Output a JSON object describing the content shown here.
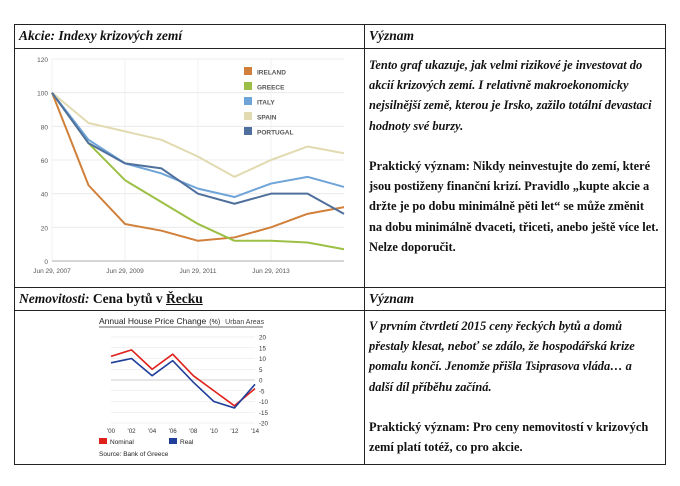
{
  "table": {
    "row1": {
      "left_header_italic": "Akcie: Indexy krizových zemí",
      "right_header": "Význam",
      "intro_text": "Tento graf ukazuje, jak velmi rizikové je investovat do akcií krizových zemí. I relativně makroekonomicky nejsilnější země, kterou je Irsko, zažilo totální devastaci hodnoty své burzy.",
      "practical_text": "Praktický význam: Nikdy neinvestujte do zemí, které jsou postiženy finanční krizí. Pravidlo „kupte akcie a držte je po dobu minimálně pěti let“ se může změnit na dobu minimálně dvaceti, třiceti, anebo ještě více let. Nelze doporučit."
    },
    "row2": {
      "left_header_italic": "Nemovitosti:",
      "left_header_regular": " Cena bytů v ",
      "left_header_underlined": "Řecku",
      "right_header": "Význam",
      "intro_text": "V prvním čtvrtletí 2015 ceny řeckých bytů a domů přestaly klesat, neboť se zdálo, že hospodářská krize pomalu končí. Jenomže přišla Tsiprasova vláda… a další díl příběhu začíná.",
      "practical_text": "Praktický význam: Pro ceny nemovitostí v krizových zemí platí totéž, co pro akcie."
    }
  },
  "chart_data": [
    {
      "type": "line",
      "title": "",
      "x": [
        "Jun 29, 2007",
        "Jun 29, 2008",
        "Jun 29, 2009",
        "Jun 29, 2010",
        "Jun 29, 2011",
        "Jun 29, 2012",
        "Jun 29, 2013",
        "Jun 29, 2014",
        "Jun 29, 2015"
      ],
      "x_tick_labels": [
        "Jun 29, 2007",
        "Jun 29, 2009",
        "Jun 29, 2011",
        "Jun 29, 2013"
      ],
      "ylim": [
        0,
        120
      ],
      "y_ticks": [
        0,
        20,
        40,
        60,
        80,
        100,
        120
      ],
      "series": [
        {
          "name": "IRELAND",
          "color": "#d0803a",
          "values": [
            100,
            45,
            22,
            18,
            12,
            14,
            20,
            28,
            32
          ]
        },
        {
          "name": "GREECE",
          "color": "#9cbf45",
          "values": [
            100,
            70,
            48,
            35,
            22,
            12,
            12,
            11,
            7
          ]
        },
        {
          "name": "ITALY",
          "color": "#6fa4d8",
          "values": [
            100,
            72,
            58,
            52,
            43,
            38,
            46,
            50,
            44
          ]
        },
        {
          "name": "SPAIN",
          "color": "#e2dab0",
          "values": [
            100,
            82,
            77,
            72,
            62,
            50,
            60,
            68,
            64
          ]
        },
        {
          "name": "PORTUGAL",
          "color": "#4f6f9c",
          "values": [
            100,
            70,
            58,
            55,
            40,
            34,
            40,
            40,
            28
          ]
        }
      ],
      "legend_position": "top-right",
      "grid": true
    },
    {
      "type": "line",
      "title": "Annual House Price Change",
      "title_unit": "(%)",
      "subtitle": "Urban Areas",
      "x": [
        "'00",
        "'02",
        "'04",
        "'06",
        "'08",
        "'10",
        "'12",
        "'14"
      ],
      "ylim": [
        -20,
        20
      ],
      "y_ticks": [
        20,
        15,
        10,
        5,
        0,
        -5,
        -10,
        -15,
        -20
      ],
      "series": [
        {
          "name": "Nominal",
          "color": "#e0201b",
          "values": [
            11,
            14,
            5,
            12,
            2,
            -5,
            -12,
            -4
          ]
        },
        {
          "name": "Real",
          "color": "#1f3f9a",
          "values": [
            8,
            10,
            2,
            9,
            -1,
            -10,
            -13,
            -2
          ]
        }
      ],
      "source": "Source: Bank of Greece",
      "legend_position": "bottom-left",
      "grid": true
    }
  ]
}
